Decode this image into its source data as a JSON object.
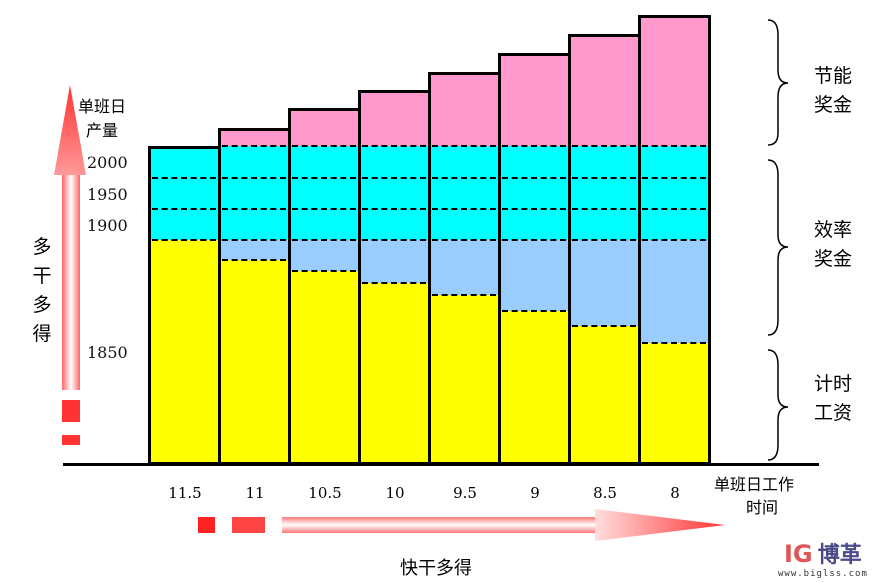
{
  "colors": {
    "hourly_wage": "#ffff00",
    "efficiency_extra": "#99ccff",
    "efficiency_bonus": "#00ffff",
    "energy_bonus": "#ff99cc",
    "arrow": "#ff3333"
  },
  "y_axis": {
    "title_line1": "单班日",
    "title_line2": "产量",
    "ticks": [
      "2000",
      "1950",
      "1900",
      "1850"
    ]
  },
  "x_axis": {
    "title_line1": "单班日工作",
    "title_line2": "时间",
    "categories": [
      "11.5",
      "11",
      "10.5",
      "10",
      "9.5",
      "9",
      "8.5",
      "8"
    ]
  },
  "left_arrow_label": [
    "多",
    "干",
    "多",
    "得"
  ],
  "bottom_arrow_label": "快干多得",
  "braces": [
    {
      "line1": "节能",
      "line2": "奖金"
    },
    {
      "line1": "效率",
      "line2": "奖金"
    },
    {
      "line1": "计时",
      "line2": "工资"
    }
  ],
  "logo": {
    "mark": "IG",
    "name": "博革",
    "url": "www.biglss.com"
  }
}
